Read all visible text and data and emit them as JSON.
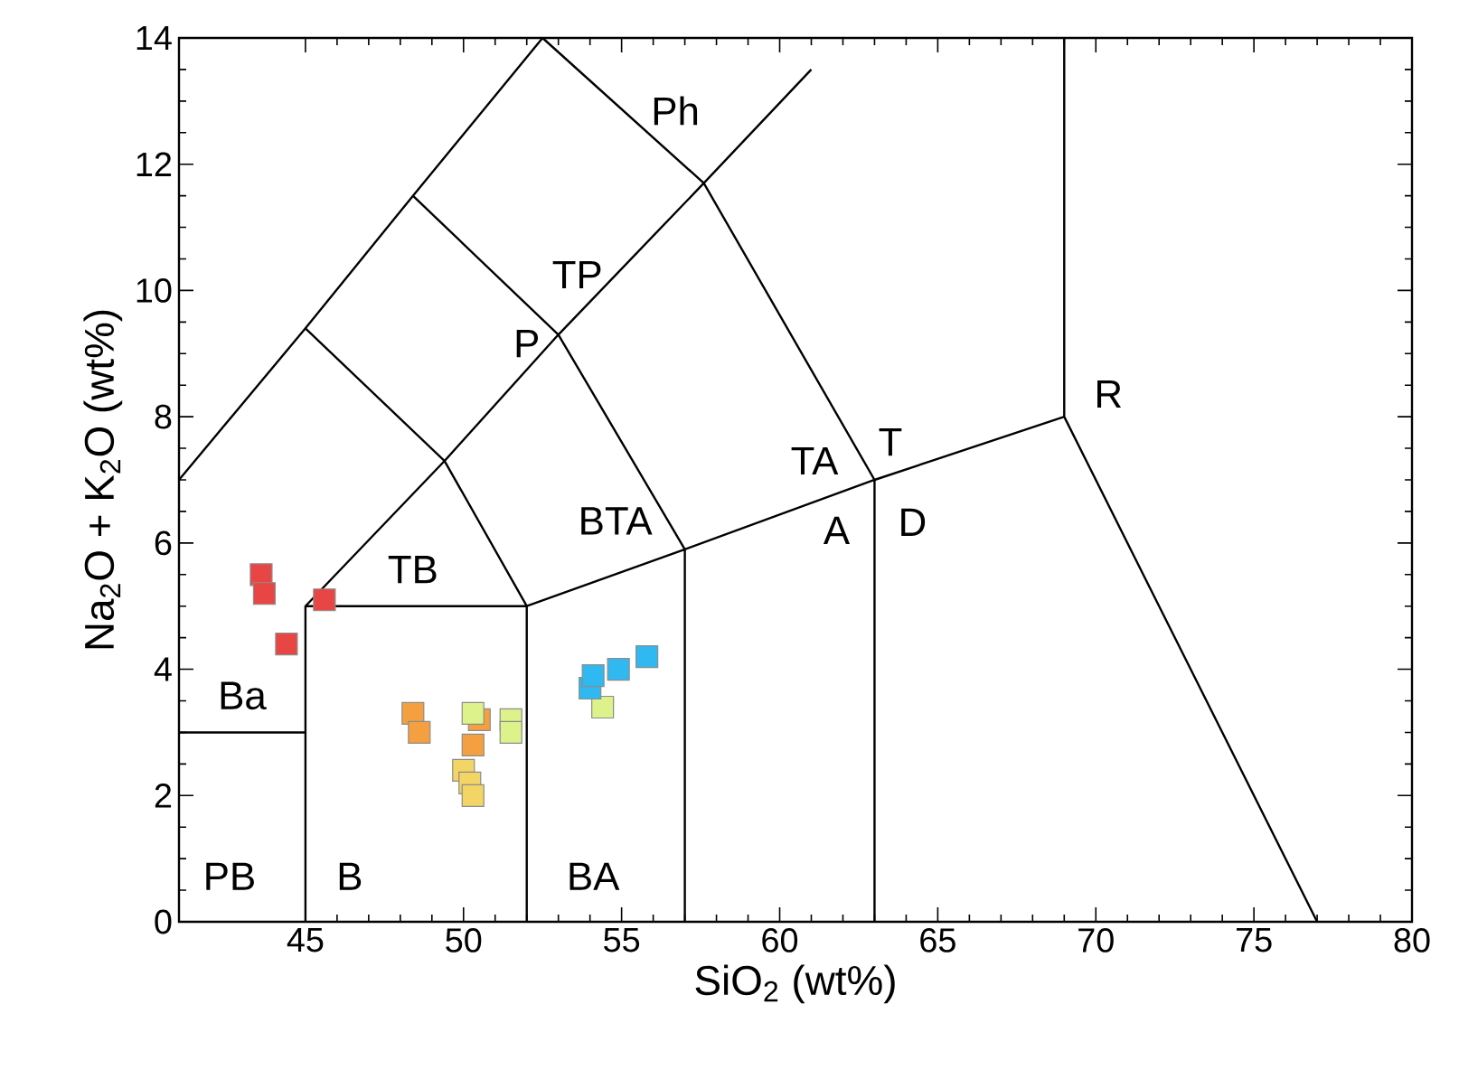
{
  "chart_data": {
    "type": "scatter",
    "xlabel": "SiO$_{2}$ (wt%)",
    "ylabel": "Na$_{2}$O + K$_{2}$O (wt%)",
    "xlim": [
      41,
      80
    ],
    "ylim": [
      0,
      14
    ],
    "xticks": [
      45,
      50,
      55,
      60,
      65,
      70,
      75,
      80
    ],
    "yticks": [
      0,
      2,
      4,
      6,
      8,
      10,
      12,
      14
    ],
    "grid": false,
    "series": [
      {
        "type": "line",
        "color": "#000000",
        "marker": "none",
        "x": [
          45,
          45,
          52,
          52,
          null,
          52,
          57,
          57,
          null,
          57,
          63,
          63,
          null,
          63,
          69,
          69,
          null,
          69,
          77,
          null,
          45,
          49.4,
          53,
          57.6,
          61,
          null,
          41,
          45,
          48.4,
          52.5,
          null,
          49.4,
          52,
          null,
          45,
          49.4,
          null,
          48.4,
          53,
          57,
          null,
          52.5,
          57.6,
          63,
          null,
          41,
          45
        ],
        "values": [
          0,
          5,
          5,
          0,
          null,
          5,
          5.9,
          0,
          null,
          5.9,
          7,
          0,
          null,
          7,
          8,
          14,
          null,
          8,
          0,
          null,
          5,
          7.3,
          9.3,
          11.7,
          13.5,
          null,
          7,
          9.4,
          11.5,
          14,
          null,
          7.3,
          5,
          null,
          9.4,
          7.3,
          null,
          11.5,
          9.3,
          5.9,
          null,
          14,
          11.7,
          7,
          null,
          3,
          3
        ]
      },
      {
        "color": "#e84545",
        "marker": "square",
        "x": [
          43.6,
          43.7,
          45.6,
          44.4
        ],
        "values": [
          5.5,
          5.2,
          5.1,
          4.4
        ]
      },
      {
        "color": "#f5a040",
        "marker": "square",
        "x": [
          48.4,
          48.6,
          50.5,
          50.3
        ],
        "values": [
          3.3,
          3.0,
          3.2,
          2.8
        ]
      },
      {
        "color": "#f2d565",
        "marker": "square",
        "x": [
          50.0,
          50.2,
          50.3
        ],
        "values": [
          2.4,
          2.2,
          2.0
        ]
      },
      {
        "color": "#ddf28a",
        "marker": "square",
        "x": [
          50.3,
          51.5,
          51.5,
          54.4
        ],
        "values": [
          3.3,
          3.2,
          3.0,
          3.4
        ]
      },
      {
        "color": "#30b8f0",
        "marker": "square",
        "x": [
          54.0,
          54.1,
          54.9,
          55.8
        ],
        "values": [
          3.7,
          3.9,
          4.0,
          4.2
        ]
      }
    ],
    "annotations": [
      "Ph",
      "TP",
      "P",
      "TA",
      "T",
      "BTA",
      "A",
      "D",
      "R",
      "TB",
      "Ba",
      "PB",
      "B",
      "BA"
    ]
  }
}
